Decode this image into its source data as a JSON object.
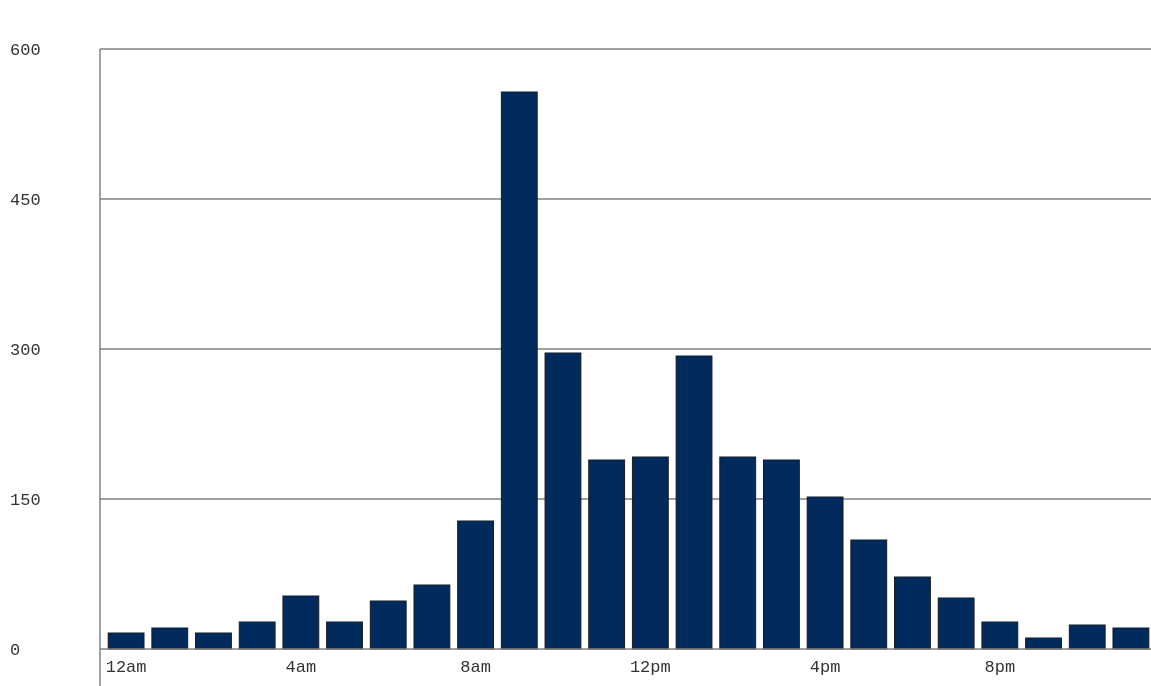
{
  "chart_data": {
    "type": "bar",
    "categories": [
      "12am",
      null,
      null,
      null,
      "4am",
      null,
      null,
      null,
      "8am",
      null,
      null,
      null,
      "12pm",
      null,
      null,
      null,
      "4pm",
      null,
      null,
      null,
      "8pm",
      null,
      null,
      null
    ],
    "values": [
      16,
      21,
      16,
      27,
      53,
      27,
      48,
      64,
      128,
      557,
      296,
      189,
      192,
      293,
      192,
      189,
      152,
      109,
      72,
      51,
      27,
      11,
      24,
      21
    ],
    "color": "#002b5c",
    "ylim": [
      0,
      600
    ],
    "yticks": [
      0,
      150,
      300,
      450,
      600
    ],
    "grid": "y"
  }
}
